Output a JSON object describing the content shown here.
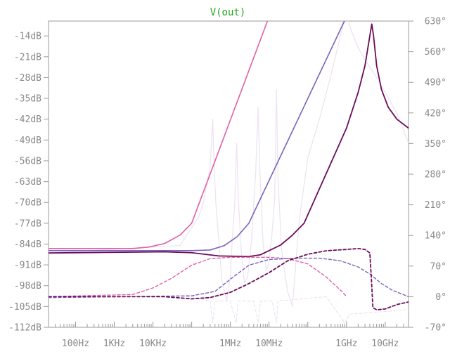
{
  "chart_data": {
    "type": "line",
    "title": "V(out)",
    "title_color": "#22aa22",
    "x_scale": "log",
    "xlim_hz": [
      20,
      40000000000
    ],
    "x_tick_labels": [
      {
        "label": "100Hz",
        "value": 100
      },
      {
        "label": "1KHz",
        "value": 1000
      },
      {
        "label": "10KHz",
        "value": 10000
      },
      {
        "label": "1MHz",
        "value": 1000000
      },
      {
        "label": "10MHz",
        "value": 10000000
      },
      {
        "label": "1GHz",
        "value": 1000000000
      },
      {
        "label": "10GHz",
        "value": 10000000000
      }
    ],
    "left_axis": {
      "unit": "dB",
      "ylim": [
        -112,
        -9
      ],
      "ticks": [
        {
          "label": "-14dB",
          "value": -14
        },
        {
          "label": "-21dB",
          "value": -21
        },
        {
          "label": "-28dB",
          "value": -28
        },
        {
          "label": "-35dB",
          "value": -35
        },
        {
          "label": "-42dB",
          "value": -42
        },
        {
          "label": "-49dB",
          "value": -49
        },
        {
          "label": "-56dB",
          "value": -56
        },
        {
          "label": "-63dB",
          "value": -63
        },
        {
          "label": "-70dB",
          "value": -70
        },
        {
          "label": "-77dB",
          "value": -77
        },
        {
          "label": "-84dB",
          "value": -84
        },
        {
          "label": "-91dB",
          "value": -91
        },
        {
          "label": "-98dB",
          "value": -98
        },
        {
          "label": "-105dB",
          "value": -105
        },
        {
          "label": "-112dB",
          "value": -112
        }
      ]
    },
    "right_axis": {
      "unit": "deg",
      "ylim": [
        -70,
        630
      ],
      "ticks": [
        {
          "label": "630°",
          "value": 630
        },
        {
          "label": "560°",
          "value": 560
        },
        {
          "label": "490°",
          "value": 490
        },
        {
          "label": "420°",
          "value": 420
        },
        {
          "label": "350°",
          "value": 350
        },
        {
          "label": "280°",
          "value": 280
        },
        {
          "label": "210°",
          "value": 210
        },
        {
          "label": "140°",
          "value": 140
        },
        {
          "label": "70°",
          "value": 70
        },
        {
          "label": "0°",
          "value": 0
        },
        {
          "label": "-70°",
          "value": -70
        }
      ]
    },
    "grid": false,
    "series": [
      {
        "axis": "left",
        "style": "solid",
        "color": "#e060a8",
        "width": 1.6,
        "points": [
          [
            20,
            -85.5
          ],
          [
            3000,
            -85.5
          ],
          [
            8000,
            -85.0
          ],
          [
            20000,
            -83.8
          ],
          [
            50000,
            -81.0
          ],
          [
            100000,
            -77.0
          ],
          [
            10000000,
            -7.5
          ]
        ]
      },
      {
        "axis": "left",
        "style": "solid",
        "color": "#7a62bc",
        "width": 1.6,
        "points": [
          [
            20,
            -86.2
          ],
          [
            100000,
            -86.2
          ],
          [
            300000,
            -86.0
          ],
          [
            700000,
            -84.5
          ],
          [
            1500000,
            -81.5
          ],
          [
            3000000,
            -77.0
          ],
          [
            1000000000,
            -7.5
          ]
        ]
      },
      {
        "axis": "left",
        "style": "solid",
        "color": "#6a0d5a",
        "width": 1.8,
        "points": [
          [
            20,
            -87.0
          ],
          [
            20000,
            -86.6
          ],
          [
            100000,
            -86.9
          ],
          [
            500000,
            -88.0
          ],
          [
            3000000,
            -88.2
          ],
          [
            6000000,
            -87.6
          ],
          [
            10000000,
            -86.2
          ],
          [
            20000000,
            -84.3
          ],
          [
            40000000,
            -81.0
          ],
          [
            80000000,
            -77.0
          ],
          [
            1000000000,
            -45.0
          ],
          [
            2000000000,
            -33.0
          ],
          [
            3000000000,
            -24.0
          ],
          [
            4000000000,
            -14.0
          ],
          [
            4500000000,
            -10.0
          ],
          [
            5000000000,
            -14.0
          ],
          [
            6000000000,
            -24.0
          ],
          [
            8000000000,
            -32.0
          ],
          [
            12000000000,
            -38.0
          ],
          [
            20000000000,
            -42.0
          ],
          [
            40000000000,
            -45.0
          ]
        ]
      },
      {
        "axis": "left",
        "style": "solid",
        "color": "#ede4f2",
        "width": 1.3,
        "points": [
          [
            20,
            -87.0
          ],
          [
            50000,
            -84.5
          ],
          [
            150000,
            -75.0
          ],
          [
            200000,
            -70.0
          ],
          [
            300000,
            -58.0
          ],
          [
            350000,
            -42.0
          ],
          [
            380000,
            -58.0
          ],
          [
            420000,
            -70.0
          ],
          [
            600000,
            -96.0
          ],
          [
            800000,
            -103.0
          ],
          [
            1000000,
            -95.0
          ],
          [
            1100000,
            -84.0
          ],
          [
            1300000,
            -70.0
          ],
          [
            1450000,
            -50.0
          ],
          [
            1600000,
            -68.0
          ],
          [
            1900000,
            -86.0
          ],
          [
            2300000,
            -97.0
          ],
          [
            2800000,
            -95.0
          ],
          [
            3500000,
            -83.0
          ],
          [
            4500000,
            -60.0
          ],
          [
            5200000,
            -38.0
          ],
          [
            5800000,
            -60.0
          ],
          [
            7000000,
            -84.0
          ],
          [
            8500000,
            -93.0
          ],
          [
            10000000,
            -90.0
          ],
          [
            12000000,
            -80.0
          ],
          [
            14000000,
            -68.0
          ],
          [
            15500000,
            -32.0
          ],
          [
            17000000,
            -62.0
          ],
          [
            21000000,
            -86.0
          ],
          [
            30000000,
            -100.0
          ],
          [
            40000000,
            -105.0
          ],
          [
            60000000,
            -76.0
          ],
          [
            100000000,
            -55.0
          ],
          [
            200000000,
            -42.0
          ],
          [
            400000000,
            -27.0
          ],
          [
            700000000,
            -14.0
          ],
          [
            900000000,
            -8.0
          ],
          [
            1100000000,
            -9.0
          ],
          [
            1400000000,
            -13.0
          ],
          [
            2000000000,
            -18.0
          ],
          [
            3000000000,
            -22.0
          ],
          [
            6000000000,
            -28.0
          ],
          [
            10000000000,
            -33.0
          ],
          [
            20000000000,
            -40.0
          ],
          [
            40000000000,
            -50.0
          ]
        ]
      },
      {
        "axis": "right",
        "style": "dashed",
        "color": "#e060a8",
        "width": 1.4,
        "points": [
          [
            20,
            0
          ],
          [
            3000,
            5
          ],
          [
            10000,
            20
          ],
          [
            30000,
            42
          ],
          [
            100000,
            72
          ],
          [
            300000,
            87
          ],
          [
            1000000,
            90
          ],
          [
            10000000,
            90
          ],
          [
            30000000,
            87
          ],
          [
            100000000,
            75
          ],
          [
            300000000,
            45
          ],
          [
            800000000,
            10
          ],
          [
            1000000000,
            0
          ]
        ]
      },
      {
        "axis": "right",
        "style": "dashed",
        "color": "#7a62bc",
        "width": 1.4,
        "points": [
          [
            20,
            -2
          ],
          [
            100000,
            2
          ],
          [
            400000,
            12
          ],
          [
            1000000,
            40
          ],
          [
            3000000,
            72
          ],
          [
            10000000,
            85
          ],
          [
            50000000,
            88
          ],
          [
            200000000,
            88
          ],
          [
            700000000,
            82
          ],
          [
            2000000000,
            68
          ],
          [
            4000000000,
            52
          ],
          [
            8000000000,
            30
          ],
          [
            15000000000,
            15
          ],
          [
            40000000000,
            0
          ]
        ]
      },
      {
        "axis": "right",
        "style": "dashed",
        "color": "#6a0d5a",
        "width": 1.8,
        "points": [
          [
            20,
            0
          ],
          [
            20000,
            0
          ],
          [
            100000,
            -5
          ],
          [
            300000,
            -2
          ],
          [
            1000000,
            10
          ],
          [
            3000000,
            30
          ],
          [
            10000000,
            55
          ],
          [
            30000000,
            82
          ],
          [
            100000000,
            97
          ],
          [
            300000000,
            105
          ],
          [
            1000000000,
            108
          ],
          [
            2000000000,
            110
          ],
          [
            3000000000,
            108
          ],
          [
            4000000000,
            100
          ],
          [
            4400000000,
            40
          ],
          [
            4800000000,
            -25
          ],
          [
            6000000000,
            -30
          ],
          [
            10000000000,
            -28
          ],
          [
            20000000000,
            -18
          ],
          [
            40000000000,
            -12
          ]
        ]
      },
      {
        "axis": "right",
        "style": "dashed",
        "color": "#ede4f2",
        "width": 1.2,
        "points": [
          [
            20,
            0
          ],
          [
            100000,
            0
          ],
          [
            300000,
            -10
          ],
          [
            350000,
            -60
          ],
          [
            400000,
            -10
          ],
          [
            1000000,
            -10
          ],
          [
            1400000,
            -60
          ],
          [
            1600000,
            -10
          ],
          [
            4000000,
            -10
          ],
          [
            5200000,
            -60
          ],
          [
            6000000,
            -10
          ],
          [
            12000000,
            -10
          ],
          [
            15500000,
            -60
          ],
          [
            17000000,
            -10
          ],
          [
            300000000,
            0
          ],
          [
            900000000,
            -60
          ],
          [
            1200000000,
            -40
          ],
          [
            40000000000,
            -30
          ]
        ]
      }
    ]
  }
}
